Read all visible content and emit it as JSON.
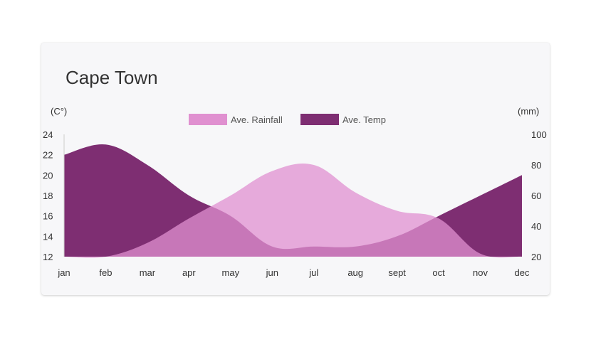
{
  "chart_data": {
    "type": "area",
    "title": "Cape Town",
    "categories": [
      "jan",
      "feb",
      "mar",
      "apr",
      "may",
      "jun",
      "jul",
      "aug",
      "sept",
      "oct",
      "nov",
      "dec"
    ],
    "series": [
      {
        "name": "Ave. Rainfall",
        "axis": "right",
        "color": "#e090d0",
        "values": [
          20,
          20,
          29,
          45,
          60,
          76,
          80,
          62,
          50,
          45,
          22,
          20
        ]
      },
      {
        "name": "Ave. Temp",
        "axis": "left",
        "color": "#7e2e72",
        "values": [
          22,
          23,
          21,
          18,
          16,
          13,
          13,
          13,
          14,
          16,
          18,
          20
        ]
      }
    ],
    "left_axis": {
      "label": "(C°)",
      "ticks": [
        12,
        14,
        16,
        18,
        20,
        22,
        24
      ],
      "range": [
        12,
        24
      ]
    },
    "right_axis": {
      "label": "(mm)",
      "ticks": [
        20,
        40,
        60,
        80,
        100
      ],
      "range": [
        20,
        100
      ]
    },
    "legend_position": "top-center",
    "grid": false
  }
}
